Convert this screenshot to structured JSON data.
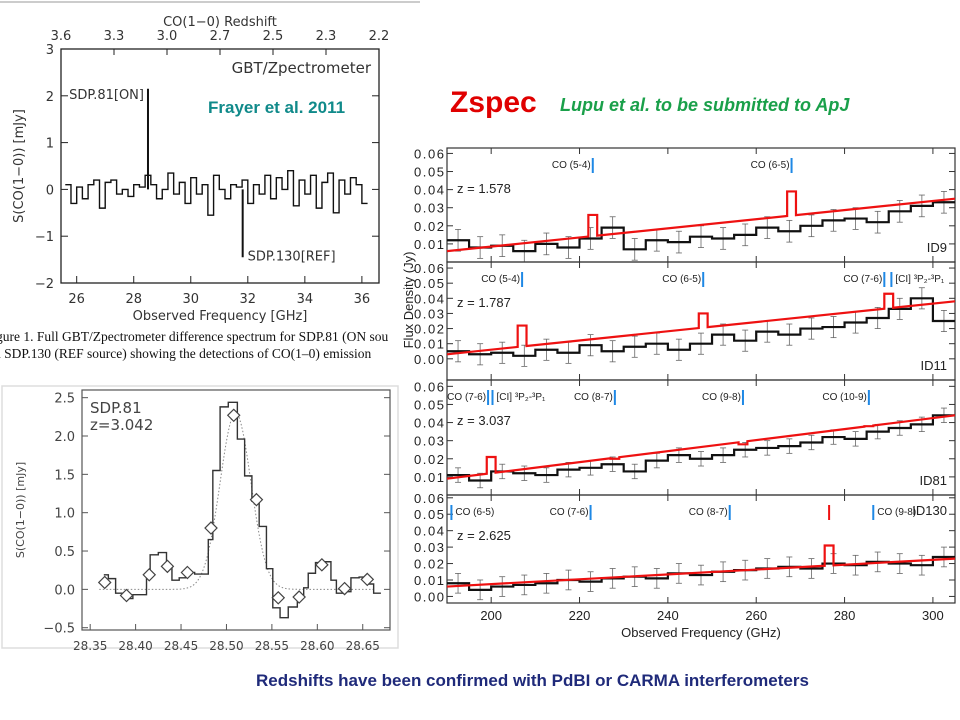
{
  "titles": {
    "zspec": "Zspec",
    "lupu": "Lupu et al. to be submitted to ApJ",
    "frayer": "Frayer et al. 2011",
    "footer": "Redshifts have been confirmed with PdBI or CARMA interferometers",
    "caption_line1": "gure 1. Full GBT/Zpectrometer difference spectrum for SDP.81 (ON sou",
    "caption_line2": "d SDP.130 (REF source) showing the detections of CO(1–0) emission"
  },
  "colors": {
    "zspec": "#e00000",
    "lupu": "#1aa04a",
    "frayer": "#108a8a",
    "footer": "#1f2a7a",
    "model": "#ee1111",
    "line_marker": "#1e88e5"
  },
  "chart_data": [
    {
      "type": "line",
      "id": "gbt",
      "xlabel": "Observed Frequency [GHz]",
      "ylabel": "S(CO(1−0)) [mJy]",
      "top_axis_label": "CO(1−0) Redshift",
      "top_ticks": [
        "3.6",
        "3.3",
        "3.0",
        "2.7",
        "2.5",
        "2.3",
        "2.2"
      ],
      "annotation": "GBT/Zpectrometer",
      "xlim": [
        25.45,
        36.6
      ],
      "ylim": [
        -2,
        3
      ],
      "xticks": [
        26,
        28,
        30,
        32,
        34,
        36
      ],
      "yticks": [
        -2,
        -1,
        0,
        1,
        2,
        3
      ],
      "x_start": 25.7,
      "x_step": 0.2,
      "values": [
        0.1,
        -0.3,
        0.05,
        -0.2,
        0.1,
        0.2,
        -0.4,
        0.15,
        0.2,
        -0.1,
        0.0,
        -0.15,
        0.1,
        0.05,
        0.3,
        0.1,
        -0.2,
        0.0,
        0.35,
        -0.1,
        0.15,
        -0.3,
        0.25,
        -0.1,
        0.1,
        -0.55,
        0.3,
        0.0,
        -0.2,
        0.1,
        0.05,
        0.2,
        -0.3,
        0.1,
        -0.1,
        0.3,
        -0.2,
        0.25,
        0.0,
        0.4,
        -0.35,
        0.2,
        -0.1,
        0.3,
        -0.4,
        0.15,
        0.35,
        -0.5,
        0.2,
        -0.1,
        0.25,
        0.1,
        -0.3
      ],
      "features": [
        {
          "x": 28.5,
          "y": 2.15,
          "label": "SDP.81[ON]"
        },
        {
          "x": 31.82,
          "y": -1.45,
          "label": "SDP.130[REF]"
        }
      ]
    },
    {
      "type": "line",
      "id": "sdp81",
      "ylabel": "S(CO(1−0)) [mJy]",
      "label_lines": [
        "SDP.81",
        "z=3.042"
      ],
      "xlim": [
        28.341,
        28.68
      ],
      "ylim": [
        -0.53,
        2.6
      ],
      "xticks": [
        28.35,
        28.4,
        28.45,
        28.5,
        28.55,
        28.6,
        28.65
      ],
      "yticks": [
        -0.5,
        0.0,
        0.5,
        1.0,
        1.5,
        2.0,
        2.5
      ],
      "step_edges": [
        28.365,
        28.37,
        28.378,
        28.387,
        28.397,
        28.412,
        28.416,
        28.425,
        28.434,
        28.44,
        28.448,
        28.455,
        28.465,
        28.48,
        28.485,
        28.493,
        28.502,
        28.512,
        28.52,
        28.528,
        28.536,
        28.544,
        28.551,
        28.559,
        28.568,
        28.578,
        28.585,
        28.59,
        28.598,
        28.605,
        28.615,
        28.621,
        28.63,
        28.637,
        28.646,
        28.655,
        28.662,
        28.67
      ],
      "step_values": [
        0.19,
        0.14,
        -0.05,
        -0.12,
        -0.07,
        0.18,
        0.45,
        0.48,
        0.3,
        0.12,
        0.15,
        0.22,
        0.2,
        0.65,
        1.55,
        2.38,
        2.44,
        1.96,
        1.48,
        1.15,
        0.82,
        0.27,
        -0.24,
        -0.37,
        -0.23,
        -0.08,
        0.02,
        0.21,
        0.35,
        0.36,
        0.12,
        -0.05,
        -0.03,
        0.15,
        0.16,
        0.07,
        -0.05
      ],
      "points": [
        [
          28.366,
          0.09
        ],
        [
          28.39,
          -0.08
        ],
        [
          28.415,
          0.19
        ],
        [
          28.435,
          0.3
        ],
        [
          28.457,
          0.22
        ],
        [
          28.483,
          0.8
        ],
        [
          28.508,
          2.27
        ],
        [
          28.533,
          1.17
        ],
        [
          28.557,
          -0.11
        ],
        [
          28.58,
          -0.1
        ],
        [
          28.605,
          0.32
        ],
        [
          28.63,
          0.01
        ],
        [
          28.655,
          0.13
        ]
      ],
      "fit": {
        "amplitude": 2.3,
        "center": 28.51,
        "sigma": 0.017
      }
    },
    {
      "type": "line",
      "id": "zspec",
      "xlabel": "Observed Frequency (GHz)",
      "ylabel": "Flux Density (Jy)",
      "xlim": [
        190,
        305
      ],
      "xticks": [
        200,
        220,
        240,
        260,
        280,
        300
      ],
      "x_start": 192.5,
      "x_step": 5,
      "panels": [
        {
          "name": "ID9",
          "z": "z = 1.578",
          "ylim": [
            0,
            0.063
          ],
          "yticks": [
            "0.01",
            "0.02",
            "0.03",
            "0.04",
            "0.05",
            "0.06"
          ],
          "cont": [
            0.006,
            0.035
          ],
          "err": 0.006,
          "values": [
            0.012,
            0.008,
            0.009,
            0.006,
            0.01,
            0.008,
            0.013,
            0.019,
            0.007,
            0.012,
            0.011,
            0.014,
            0.013,
            0.015,
            0.019,
            0.017,
            0.02,
            0.023,
            0.024,
            0.022,
            0.028,
            0.031,
            0.033
          ],
          "model_lines": [
            [
              223,
              0.026
            ],
            [
              268,
              0.039
            ]
          ],
          "markers": [
            {
              "x": 223,
              "label": "CO (5-4)",
              "color": "#1e88e5"
            },
            {
              "x": 268,
              "label": "CO (6-5)",
              "color": "#1e88e5"
            }
          ]
        },
        {
          "name": "ID11",
          "z": "z = 1.787",
          "ylim": [
            -0.014,
            0.064
          ],
          "yticks": [
            "0.00",
            "0.01",
            "0.02",
            "0.03",
            "0.04",
            "0.05",
            "0.06"
          ],
          "cont": [
            0.003,
            0.038
          ],
          "err": 0.007,
          "values": [
            0.005,
            0.003,
            0.004,
            0.002,
            0.006,
            0.004,
            0.009,
            0.005,
            0.008,
            0.01,
            0.006,
            0.01,
            0.016,
            0.012,
            0.018,
            0.016,
            0.02,
            0.021,
            0.024,
            0.027,
            0.033,
            0.04,
            0.025
          ],
          "model_lines": [
            [
              207,
              0.022
            ],
            [
              248,
              0.03
            ],
            [
              290,
              0.043
            ]
          ],
          "markers": [
            {
              "x": 207,
              "label": "CO (5-4)",
              "color": "#1e88e5"
            },
            {
              "x": 248,
              "label": "CO (6-5)",
              "color": "#1e88e5"
            },
            {
              "x": 289,
              "label": "CO (7-6)",
              "color": "#1e88e5"
            },
            {
              "x": 290.6,
              "label": "[CI] ³P₂-³P₁",
              "color": "#1e88e5",
              "right": true
            }
          ]
        },
        {
          "name": "ID81",
          "z": "z = 3.037",
          "ylim": [
            0,
            0.0635
          ],
          "yticks": [
            "0.01",
            "0.02",
            "0.03",
            "0.04",
            "0.05",
            "0.06"
          ],
          "cont": [
            0.009,
            0.044
          ],
          "err": 0.004,
          "values": [
            0.011,
            0.008,
            0.013,
            0.012,
            0.011,
            0.014,
            0.015,
            0.017,
            0.013,
            0.019,
            0.022,
            0.02,
            0.022,
            0.025,
            0.026,
            0.027,
            0.029,
            0.032,
            0.031,
            0.035,
            0.037,
            0.039,
            0.044
          ],
          "model_lines": [
            [
              200,
              0.021
            ],
            [
              228,
              0.02
            ],
            [
              257,
              0.028
            ],
            [
              285.5,
              0.038
            ]
          ],
          "markers": [
            {
              "x": 199.3,
              "label": "CO (7-6)",
              "color": "#1e88e5"
            },
            {
              "x": 200.3,
              "label": "[CI] ³P₂-³P₁",
              "color": "#1e88e5",
              "right": true
            },
            {
              "x": 228,
              "label": "CO (8-7)",
              "color": "#1e88e5"
            },
            {
              "x": 257,
              "label": "CO (9-8)",
              "color": "#1e88e5"
            },
            {
              "x": 285.5,
              "label": "CO (10-9)",
              "color": "#1e88e5"
            }
          ]
        },
        {
          "name": "ID130",
          "z": "z = 2.625",
          "ylim": [
            -0.004,
            0.0617
          ],
          "yticks": [
            "0.00",
            "0.01",
            "0.02",
            "0.03",
            "0.04",
            "0.05",
            "0.06"
          ],
          "cont": [
            0.006,
            0.023
          ],
          "err": 0.006,
          "values": [
            0.008,
            0.004,
            0.006,
            0.007,
            0.008,
            0.01,
            0.009,
            0.011,
            0.012,
            0.011,
            0.014,
            0.013,
            0.015,
            0.016,
            0.017,
            0.018,
            0.017,
            0.02,
            0.019,
            0.021,
            0.02,
            0.019,
            0.024
          ],
          "model_lines": [
            [
              276.5,
              0.031
            ]
          ],
          "markers": [
            {
              "x": 191,
              "label": "CO (6-5)",
              "color": "#1e88e5",
              "right": true
            },
            {
              "x": 222.5,
              "label": "CO (7-6)",
              "color": "#1e88e5"
            },
            {
              "x": 254,
              "label": "CO (8-7)",
              "color": "#1e88e5"
            },
            {
              "x": 276.5,
              "label": "",
              "color": "#ee1111"
            },
            {
              "x": 286.5,
              "label": "CO (9-8)",
              "color": "#1e88e5",
              "right": true
            }
          ]
        }
      ]
    }
  ]
}
